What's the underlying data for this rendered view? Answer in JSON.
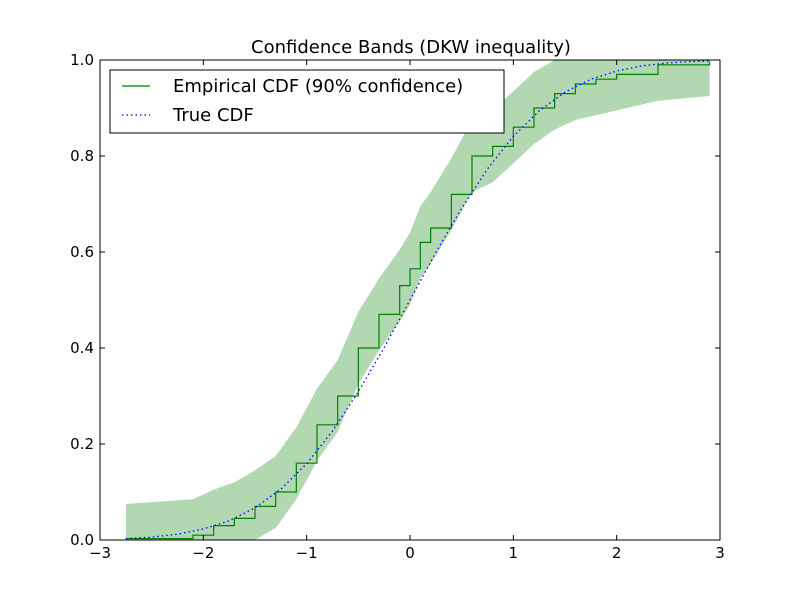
{
  "chart_data": {
    "type": "line",
    "title": "Confidence Bands (DKW inequality)",
    "xlabel": "",
    "ylabel": "",
    "xlim": [
      -3,
      3
    ],
    "ylim": [
      0,
      1
    ],
    "xticks": [
      "−3",
      "−2",
      "−1",
      "0",
      "1",
      "2",
      "3"
    ],
    "xtick_values": [
      -3,
      -2,
      -1,
      0,
      1,
      2,
      3
    ],
    "yticks": [
      "0.0",
      "0.2",
      "0.4",
      "0.6",
      "0.8",
      "1.0"
    ],
    "ytick_values": [
      0,
      0.2,
      0.4,
      0.6,
      0.8,
      1.0
    ],
    "grid": false,
    "legend": {
      "position": "upper-left",
      "entries": [
        {
          "label": "Empirical CDF (90% confidence)",
          "style": "solid",
          "color": "#008000"
        },
        {
          "label": "True CDF",
          "style": "dotted",
          "color": "#0000ff"
        }
      ]
    },
    "colors": {
      "empirical": "#008000",
      "true_cdf": "#0000ff",
      "band": "#b2d8b2"
    },
    "series": [
      {
        "name": "Empirical CDF (90% confidence)",
        "x": [
          -2.75,
          -2.1,
          -1.9,
          -1.7,
          -1.5,
          -1.3,
          -1.1,
          -0.9,
          -0.7,
          -0.5,
          -0.3,
          -0.1,
          0.0,
          0.1,
          0.2,
          0.4,
          0.6,
          0.8,
          1.0,
          1.2,
          1.4,
          1.6,
          1.8,
          2.0,
          2.4,
          2.9
        ],
        "y": [
          0.003,
          0.01,
          0.03,
          0.045,
          0.07,
          0.1,
          0.16,
          0.24,
          0.3,
          0.4,
          0.47,
          0.53,
          0.565,
          0.62,
          0.65,
          0.72,
          0.8,
          0.82,
          0.86,
          0.9,
          0.93,
          0.95,
          0.96,
          0.97,
          0.99,
          0.997
        ]
      },
      {
        "name": "True CDF",
        "distribution": "standard normal",
        "x": [
          -2.75,
          -2.5,
          -2.25,
          -2.0,
          -1.75,
          -1.5,
          -1.25,
          -1.0,
          -0.75,
          -0.5,
          -0.25,
          0.0,
          0.25,
          0.5,
          0.75,
          1.0,
          1.25,
          1.5,
          1.75,
          2.0,
          2.25,
          2.5,
          2.75,
          2.9
        ],
        "y": [
          0.003,
          0.006,
          0.012,
          0.023,
          0.04,
          0.067,
          0.106,
          0.159,
          0.227,
          0.309,
          0.401,
          0.5,
          0.599,
          0.691,
          0.773,
          0.841,
          0.894,
          0.933,
          0.96,
          0.977,
          0.988,
          0.994,
          0.997,
          0.998
        ]
      }
    ],
    "band": {
      "name": "90% confidence band",
      "x": [
        -2.75,
        -2.1,
        -1.9,
        -1.7,
        -1.5,
        -1.3,
        -1.1,
        -0.9,
        -0.7,
        -0.5,
        -0.3,
        -0.1,
        0.0,
        0.1,
        0.2,
        0.4,
        0.6,
        0.8,
        1.0,
        1.2,
        1.4,
        1.6,
        1.8,
        2.0,
        2.4,
        2.9
      ],
      "upper": [
        0.075,
        0.085,
        0.105,
        0.12,
        0.145,
        0.175,
        0.235,
        0.315,
        0.375,
        0.475,
        0.545,
        0.605,
        0.64,
        0.695,
        0.725,
        0.795,
        0.875,
        0.895,
        0.935,
        0.975,
        1.0,
        1.0,
        1.0,
        1.0,
        1.0,
        1.0
      ],
      "lower": [
        0.0,
        0.0,
        0.0,
        0.0,
        0.0,
        0.025,
        0.085,
        0.165,
        0.225,
        0.325,
        0.395,
        0.455,
        0.49,
        0.545,
        0.575,
        0.645,
        0.725,
        0.745,
        0.785,
        0.825,
        0.855,
        0.875,
        0.885,
        0.895,
        0.915,
        0.925
      ]
    }
  }
}
